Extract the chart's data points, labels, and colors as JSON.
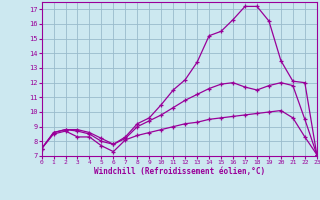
{
  "xlabel": "Windchill (Refroidissement éolien,°C)",
  "bg_color": "#cce8f0",
  "line_color": "#990099",
  "grid_color": "#99bbcc",
  "xlim": [
    0,
    23
  ],
  "ylim": [
    7,
    17.5
  ],
  "xticks": [
    0,
    1,
    2,
    3,
    4,
    5,
    6,
    7,
    8,
    9,
    10,
    11,
    12,
    13,
    14,
    15,
    16,
    17,
    18,
    19,
    20,
    21,
    22,
    23
  ],
  "yticks": [
    7,
    8,
    9,
    10,
    11,
    12,
    13,
    14,
    15,
    16,
    17
  ],
  "line1_x": [
    0,
    1,
    2,
    3,
    4,
    5,
    6,
    7,
    8,
    9,
    10,
    11,
    12,
    13,
    14,
    15,
    16,
    17,
    18,
    19,
    20,
    21,
    22,
    23
  ],
  "line1_y": [
    7.5,
    8.5,
    8.7,
    8.3,
    8.3,
    7.7,
    7.3,
    8.1,
    8.4,
    8.6,
    8.8,
    9.0,
    9.2,
    9.3,
    9.5,
    9.6,
    9.7,
    9.8,
    9.9,
    10.0,
    10.1,
    9.6,
    8.3,
    7.1
  ],
  "line2_x": [
    0,
    1,
    2,
    3,
    4,
    5,
    6,
    7,
    8,
    9,
    10,
    11,
    12,
    13,
    14,
    15,
    16,
    17,
    18,
    19,
    20,
    21,
    22,
    23
  ],
  "line2_y": [
    7.5,
    8.6,
    8.8,
    8.7,
    8.5,
    8.0,
    7.8,
    8.2,
    9.0,
    9.4,
    9.8,
    10.3,
    10.8,
    11.2,
    11.6,
    11.9,
    12.0,
    11.7,
    11.5,
    11.8,
    12.0,
    11.8,
    9.5,
    7.1
  ],
  "line3_x": [
    0,
    1,
    2,
    3,
    4,
    5,
    6,
    7,
    8,
    9,
    10,
    11,
    12,
    13,
    14,
    15,
    16,
    17,
    18,
    19,
    20,
    21,
    22,
    23
  ],
  "line3_y": [
    7.5,
    8.6,
    8.8,
    8.8,
    8.6,
    8.2,
    7.8,
    8.3,
    9.2,
    9.6,
    10.5,
    11.5,
    12.2,
    13.4,
    15.2,
    15.5,
    16.3,
    17.2,
    17.2,
    16.2,
    13.5,
    12.1,
    12.0,
    7.1
  ]
}
